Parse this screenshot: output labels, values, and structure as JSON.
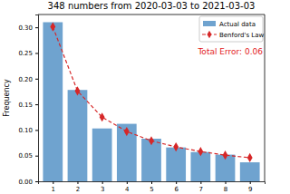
{
  "chart_data": {
    "type": "bar",
    "title": "348 numbers from 2020-03-03 to 2021-03-03",
    "y_label": "Frequency",
    "annotation": "Total Error: 0.06",
    "annotation_color": "#e31a1c",
    "x": [
      1,
      2,
      3,
      4,
      5,
      6,
      7,
      8,
      9
    ],
    "xlim": [
      0.4,
      9.6
    ],
    "xticks": [
      1,
      2,
      3,
      4,
      5,
      6,
      7,
      8,
      9
    ],
    "ylim": [
      0,
      0.325
    ],
    "yticks": [
      {
        "value": 0,
        "label": "0.00"
      },
      {
        "value": 0.05,
        "label": "0.05"
      },
      {
        "value": 0.1,
        "label": "0.10"
      },
      {
        "value": 0.15,
        "label": "0.15"
      },
      {
        "value": 0.2,
        "label": "0.20"
      },
      {
        "value": 0.25,
        "label": "0.25"
      },
      {
        "value": 0.3,
        "label": "0.30"
      }
    ],
    "grid": false,
    "legend": "upper right",
    "series": [
      {
        "name": "Actual data",
        "type": "bar",
        "color": "#6fa3cf",
        "values": [
          0.31,
          0.178,
          0.103,
          0.112,
          0.083,
          0.066,
          0.057,
          0.052,
          0.037
        ]
      },
      {
        "name": "Benford's Law",
        "type": "line",
        "color": "#d62728",
        "marker": "diamond",
        "line_style": "dashed",
        "values": [
          0.301,
          0.176,
          0.125,
          0.097,
          0.079,
          0.067,
          0.058,
          0.051,
          0.046
        ]
      }
    ]
  }
}
